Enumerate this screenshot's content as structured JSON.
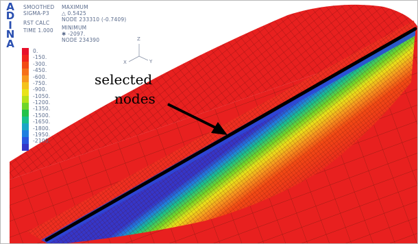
{
  "software": {
    "logo_letters": [
      "A",
      "D",
      "I",
      "N",
      "A"
    ]
  },
  "result_header": {
    "line1": "SMOOTHED",
    "line2": "SIGMA-P3",
    "line3": "RST CALC",
    "line4": "TIME 1.000"
  },
  "extrema": {
    "max_heading": "MAXIMUM",
    "max_value": "△ 0.5425",
    "max_node": "NODE 233310 (-0.7409)",
    "min_heading": "MINIMUM",
    "min_value": "✱ -2097.",
    "min_node": "NODE 234390"
  },
  "legend": {
    "ticks": [
      "0.",
      "-150.",
      "-300.",
      "-450.",
      "-600.",
      "-750.",
      "-900.",
      "-1050.",
      "-1200.",
      "-1350.",
      "-1500.",
      "-1650.",
      "-1800.",
      "-1950.",
      "-2100."
    ],
    "colors": [
      "#e8102a",
      "#f0241c",
      "#f24a14",
      "#f6701a",
      "#f7981f",
      "#f4c21c",
      "#e8e31a",
      "#b7e21a",
      "#6fd62a",
      "#22c24a",
      "#18c08e",
      "#1aa6c6",
      "#1f7fe0",
      "#2a56e0",
      "#3536c8"
    ]
  },
  "axes": {
    "z": "Z",
    "x": "X",
    "y": "Y"
  },
  "annotation": {
    "line1": "selected",
    "line2": "nodes"
  },
  "colors": {
    "mesh_red": "#e8201f",
    "mesh_line": "#8a1010",
    "selection_line": "#000000"
  }
}
